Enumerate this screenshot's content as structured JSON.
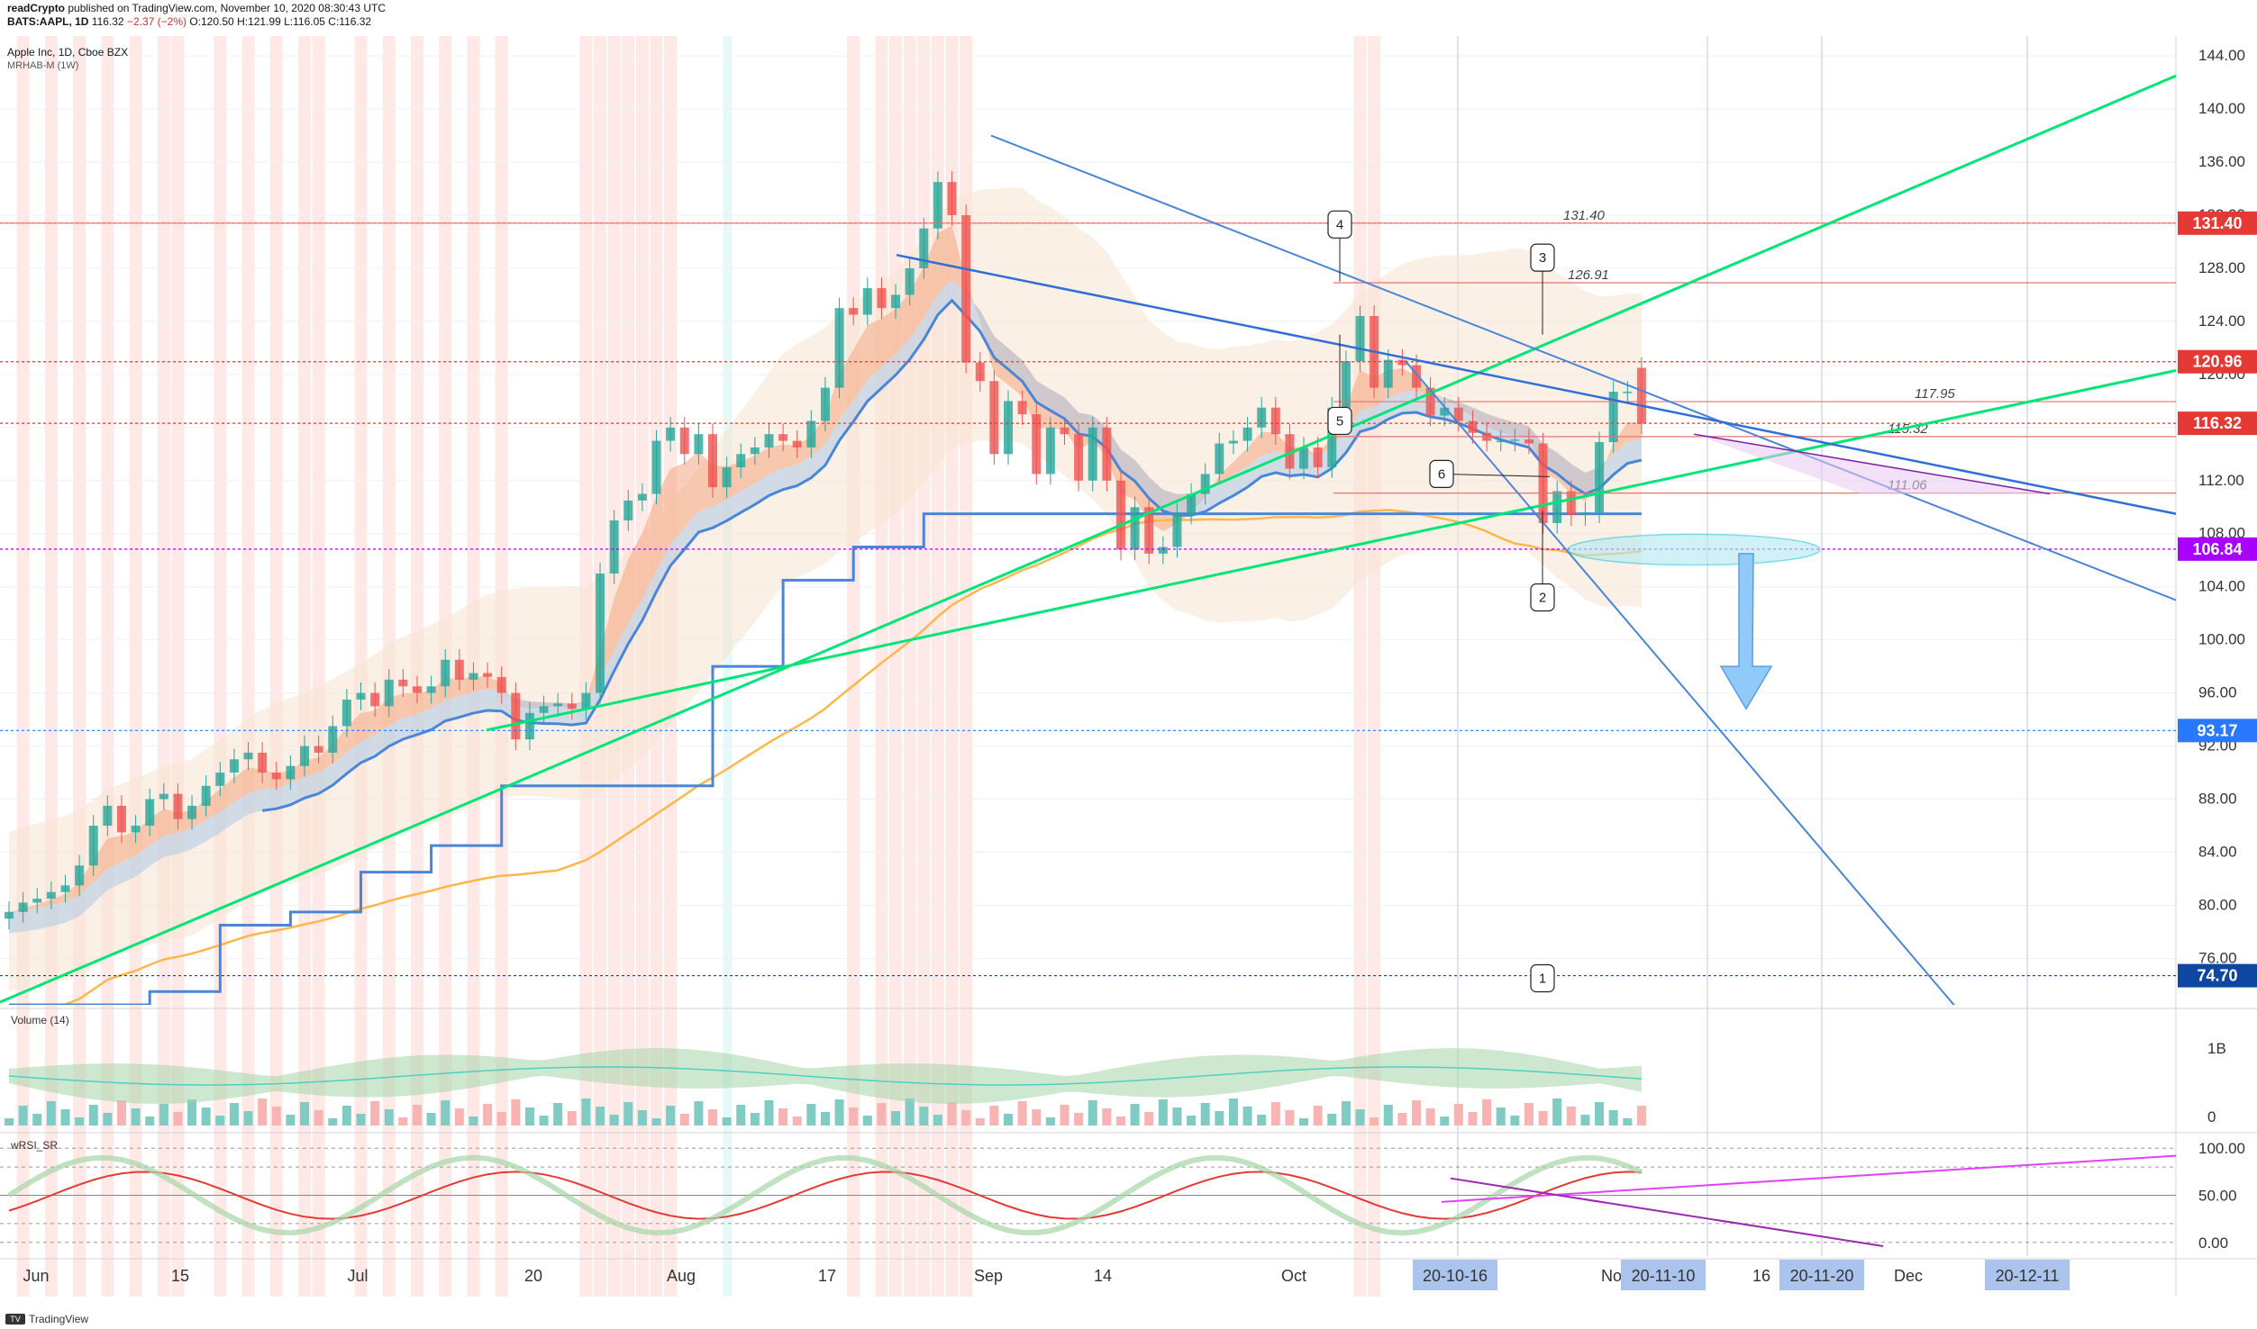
{
  "header": {
    "publisher": "readCrypto",
    "published_text": "published on TradingView.com, November 10, 2020 08:30:43 UTC",
    "symbol": "BATS:AAPL, 1D",
    "last": "116.32",
    "change": "−2.37 (−2%)",
    "o": "O:120.50",
    "h": "H:121.99",
    "l": "L:116.05",
    "c": "C:116.32",
    "title": "Apple Inc, 1D, Cboe BZX",
    "indicator": "MRHAB-M (1W)"
  },
  "footer": {
    "brand": "TradingView"
  },
  "colors": {
    "up": "#26a69a",
    "down": "#ef5350",
    "green_line": "#00e676",
    "blue_line": "#2962ff",
    "purple": "#9c27b0",
    "magenta": "#e040fb",
    "orange": "#ffb74d",
    "red_band": "#fde0dc"
  },
  "chart_data": [
    {
      "type": "candlestick",
      "title": "Apple Inc, 1D, Cboe BZX",
      "x_ticks": [
        "Jun",
        "15",
        "Jul",
        "20",
        "Aug",
        "17",
        "Sep",
        "14",
        "Oct",
        "20-10-16",
        "Nov",
        "20-11-10",
        "16",
        "20-11-20",
        "Dec",
        "20-12-11"
      ],
      "y_ticks": [
        76.0,
        80.0,
        84.0,
        88.0,
        92.0,
        96.0,
        100.0,
        104.0,
        108.0,
        112.0,
        116.0,
        120.0,
        124.0,
        128.0,
        132.0,
        136.0,
        140.0,
        144.0
      ],
      "ylim": [
        72.5,
        145.5
      ],
      "price_labels": [
        {
          "value": 131.4,
          "text": "131.40",
          "color": "#e53935"
        },
        {
          "value": 120.96,
          "text": "120.96",
          "color": "#e53935"
        },
        {
          "value": 116.32,
          "text": "116.32",
          "color": "#e53935"
        },
        {
          "value": 106.84,
          "text": "106.84",
          "color": "#aa00ff"
        },
        {
          "value": 93.17,
          "text": "93.17",
          "color": "#2979ff"
        },
        {
          "value": 74.7,
          "text": "74.70",
          "color": "#0d47a1"
        }
      ],
      "levels": [
        {
          "value": 131.4,
          "text": "131.40"
        },
        {
          "value": 126.91,
          "text": "126.91"
        },
        {
          "value": 117.95,
          "text": "117.95"
        },
        {
          "value": 115.32,
          "text": "115.32"
        },
        {
          "value": 111.06,
          "text": "111.06"
        }
      ],
      "callouts": [
        "1",
        "2",
        "3",
        "4",
        "5",
        "6"
      ],
      "close": [
        79.5,
        80.2,
        80.5,
        81.0,
        81.5,
        83.0,
        86.0,
        87.5,
        85.5,
        86.0,
        88.0,
        88.4,
        86.5,
        87.5,
        89.0,
        90.0,
        91.0,
        91.5,
        90.0,
        89.5,
        90.5,
        92.0,
        91.5,
        93.5,
        95.5,
        96.0,
        95.0,
        97.0,
        96.5,
        96.0,
        96.5,
        98.5,
        97.0,
        97.5,
        97.2,
        96.0,
        92.5,
        94.5,
        95.0,
        95.2,
        94.8,
        96.0,
        105.0,
        109.0,
        110.5,
        111.0,
        115.0,
        116.0,
        114.0,
        115.5,
        111.5,
        113.0,
        114.0,
        114.5,
        115.5,
        115.0,
        114.5,
        116.5,
        119.0,
        125.0,
        124.5,
        126.5,
        125.0,
        126.0,
        128.0,
        131.0,
        134.5,
        132.0,
        120.9,
        119.5,
        114.0,
        118.0,
        117.0,
        112.5,
        116.0,
        115.5,
        112.0,
        116.0,
        112.0,
        106.8,
        110.0,
        106.5,
        107.0,
        109.5,
        111.0,
        112.5,
        114.8,
        115.0,
        116.0,
        117.5,
        115.5,
        112.9,
        114.5,
        113.0,
        117.5,
        121.0,
        124.4,
        119.0,
        121.1,
        120.7,
        119.0,
        116.9,
        117.5,
        116.5,
        115.6,
        115.0,
        115.0,
        115.1,
        114.8,
        108.8,
        111.2,
        109.4,
        109.6,
        114.9,
        118.7,
        118.7,
        116.3
      ],
      "open": [
        79.0,
        79.5,
        80.2,
        80.5,
        81.0,
        81.5,
        83.0,
        86.0,
        87.5,
        85.5,
        86.0,
        88.0,
        88.4,
        86.5,
        87.5,
        89.0,
        90.0,
        91.0,
        91.5,
        90.0,
        89.5,
        90.5,
        92.0,
        91.5,
        93.5,
        95.5,
        96.0,
        95.0,
        97.0,
        96.5,
        96.0,
        96.5,
        98.5,
        97.0,
        97.5,
        97.2,
        96.0,
        92.5,
        94.5,
        95.0,
        95.2,
        94.8,
        96.0,
        105.0,
        109.0,
        110.5,
        111.0,
        115.0,
        116.0,
        114.0,
        115.5,
        111.5,
        113.0,
        114.0,
        114.5,
        115.5,
        115.0,
        114.5,
        116.5,
        119.0,
        125.0,
        124.5,
        126.5,
        125.0,
        126.0,
        128.0,
        131.0,
        134.5,
        132.0,
        120.9,
        119.5,
        114.0,
        118.0,
        117.0,
        112.5,
        116.0,
        115.5,
        112.0,
        116.0,
        112.0,
        106.8,
        110.0,
        106.5,
        107.0,
        109.5,
        111.0,
        112.5,
        114.8,
        115.0,
        116.0,
        117.5,
        115.5,
        112.9,
        114.5,
        113.0,
        117.5,
        121.0,
        124.4,
        119.0,
        121.1,
        120.7,
        119.0,
        116.9,
        117.5,
        116.5,
        115.6,
        115.0,
        115.0,
        115.1,
        114.8,
        108.8,
        111.2,
        109.4,
        109.6,
        114.9,
        118.7,
        120.5
      ]
    },
    {
      "type": "bar",
      "title": "Volume (14)",
      "y_ticks": [
        "1B",
        "0"
      ]
    },
    {
      "type": "line",
      "title": "wRSI_SR",
      "y_ticks": [
        100.0,
        50.0,
        0.0
      ],
      "ylim": [
        -5,
        105
      ]
    }
  ]
}
